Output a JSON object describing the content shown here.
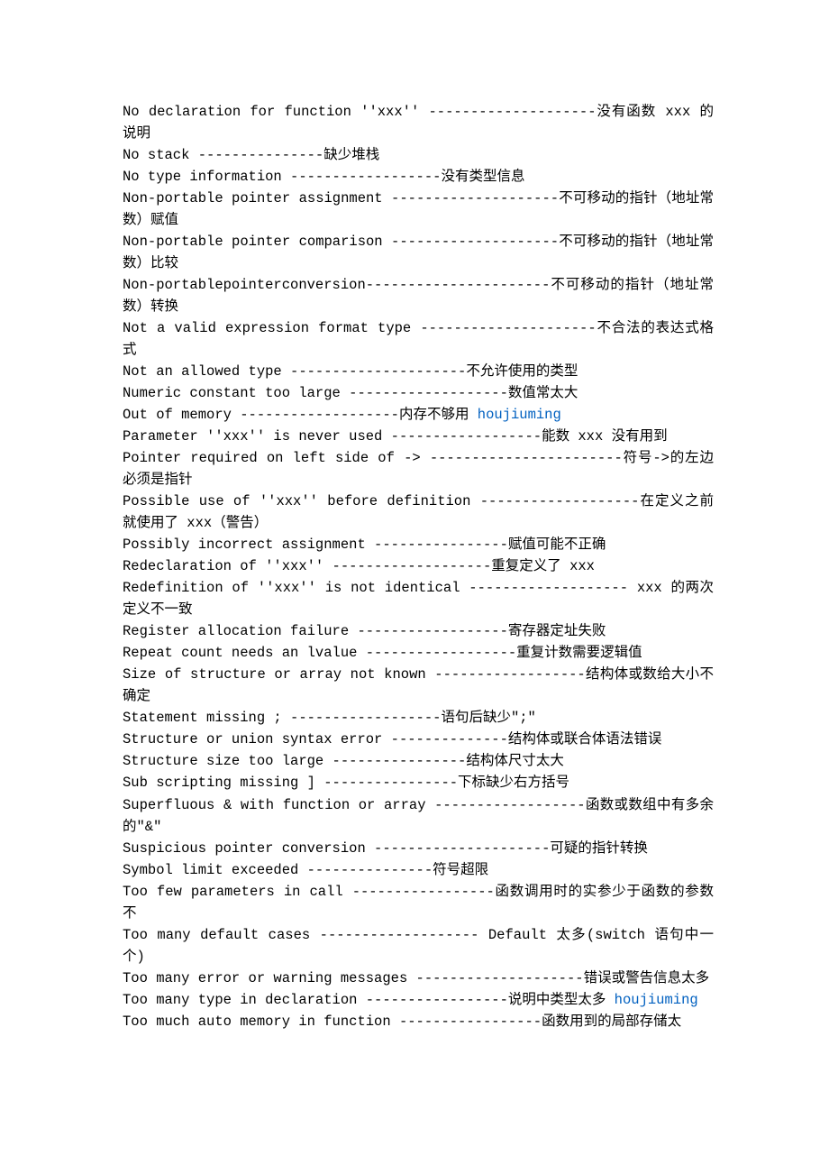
{
  "lines": [
    {
      "segments": [
        {
          "text": "No declaration for function ''xxx'' --------------------没有函数 xxx 的说明"
        }
      ]
    },
    {
      "segments": [
        {
          "text": "No stack ---------------缺少堆栈"
        }
      ]
    },
    {
      "segments": [
        {
          "text": "No type information ------------------没有类型信息"
        }
      ]
    },
    {
      "segments": [
        {
          "text": "Non-portable pointer assignment --------------------不可移动的指针（地址常数）赋值"
        }
      ]
    },
    {
      "segments": [
        {
          "text": "Non-portable pointer comparison --------------------不可移动的指针（地址常数）比较"
        }
      ]
    },
    {
      "segments": [
        {
          "text": "Non-portablepointerconversion----------------------不可移动的指针（地址常数）转换"
        }
      ]
    },
    {
      "segments": [
        {
          "text": "Not a valid expression format type ---------------------不合法的表达式格式"
        }
      ]
    },
    {
      "segments": [
        {
          "text": "Not an allowed type ---------------------不允许使用的类型"
        }
      ]
    },
    {
      "segments": [
        {
          "text": "Numeric constant too large -------------------数值常太大"
        }
      ]
    },
    {
      "segments": [
        {
          "text": "Out of memory -------------------内存不够用 "
        },
        {
          "text": "houjiuming",
          "link": true
        }
      ]
    },
    {
      "segments": [
        {
          "text": "Parameter ''xxx'' is never used ------------------能数 xxx 没有用到"
        }
      ]
    },
    {
      "segments": [
        {
          "text": "Pointer required on left side of -> -----------------------符号->的左边必须是指针"
        }
      ]
    },
    {
      "segments": [
        {
          "text": "Possible use of ''xxx'' before definition -------------------在定义之前就使用了 xxx（警告）"
        }
      ]
    },
    {
      "segments": [
        {
          "text": "Possibly incorrect assignment ----------------赋值可能不正确"
        }
      ]
    },
    {
      "segments": [
        {
          "text": "Redeclaration of ''xxx'' -------------------重复定义了 xxx"
        }
      ]
    },
    {
      "segments": [
        {
          "text": "Redefinition of ''xxx'' is not identical ------------------- xxx 的两次定义不一致"
        }
      ]
    },
    {
      "segments": [
        {
          "text": "Register allocation failure ------------------寄存器定址失败"
        }
      ]
    },
    {
      "segments": [
        {
          "text": "Repeat count needs an lvalue ------------------重复计数需要逻辑值"
        }
      ]
    },
    {
      "segments": [
        {
          "text": "Size of structure or array not known ------------------结构体或数给大小不确定"
        }
      ]
    },
    {
      "segments": [
        {
          "text": "Statement missing ; ------------------语句后缺少\";\""
        }
      ]
    },
    {
      "segments": [
        {
          "text": "Structure or union syntax error --------------结构体或联合体语法错误"
        }
      ]
    },
    {
      "segments": [
        {
          "text": "Structure size too large ----------------结构体尺寸太大"
        }
      ]
    },
    {
      "segments": [
        {
          "text": "Sub scripting missing ] ----------------下标缺少右方括号"
        }
      ]
    },
    {
      "segments": [
        {
          "text": "Superfluous & with function or array ------------------函数或数组中有多余的\"&\""
        }
      ]
    },
    {
      "segments": [
        {
          "text": "Suspicious pointer conversion ---------------------可疑的指针转换"
        }
      ]
    },
    {
      "segments": [
        {
          "text": "Symbol limit exceeded ---------------符号超限"
        }
      ]
    },
    {
      "segments": [
        {
          "text": "Too few parameters in call -----------------函数调用时的实参少于函数的参数不"
        }
      ]
    },
    {
      "segments": [
        {
          "text": "Too many default cases ------------------- Default 太多(switch 语句中一个)"
        }
      ]
    },
    {
      "segments": [
        {
          "text": "Too many error or warning messages --------------------错误或警告信息太多"
        }
      ]
    },
    {
      "segments": [
        {
          "text": " "
        }
      ]
    },
    {
      "segments": [
        {
          "text": "Too many type in declaration -----------------说明中类型太多 "
        },
        {
          "text": "houjiuming",
          "link": true
        }
      ]
    },
    {
      "segments": [
        {
          "text": "Too much auto memory in function -----------------函数用到的局部存储太"
        }
      ]
    }
  ]
}
